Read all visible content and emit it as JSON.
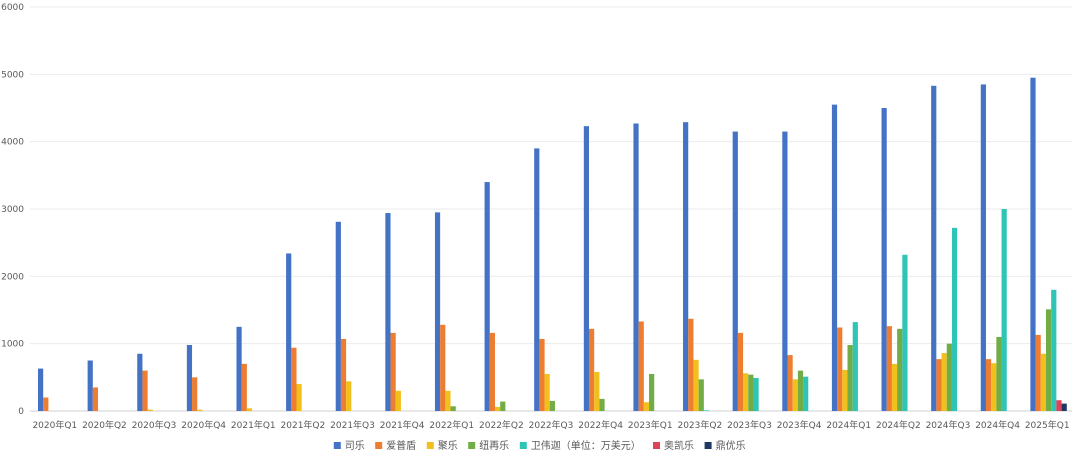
{
  "chart_data": {
    "type": "bar",
    "title": "",
    "xlabel": "",
    "ylabel": "",
    "ylim": [
      0,
      6000
    ],
    "yticks": [
      0,
      1000,
      2000,
      3000,
      4000,
      5000,
      6000
    ],
    "grid": true,
    "legend_position": "bottom",
    "categories": [
      "2020年Q1",
      "2020年Q2",
      "2020年Q3",
      "2020年Q4",
      "2021年Q1",
      "2021年Q2",
      "2021年Q3",
      "2021年Q4",
      "2022年Q1",
      "2022年Q2",
      "2022年Q3",
      "2022年Q4",
      "2023年Q1",
      "2023年Q2",
      "2023年Q3",
      "2023年Q4",
      "2024年Q1",
      "2024年Q2",
      "2024年Q3",
      "2024年Q4",
      "2025年Q1"
    ],
    "series": [
      {
        "name": "司乐",
        "color": "#4472C4",
        "values": [
          630,
          750,
          850,
          980,
          1250,
          2340,
          2810,
          2940,
          2950,
          3400,
          3900,
          4230,
          4270,
          4290,
          4150,
          4150,
          4550,
          4500,
          4830,
          4850,
          4950
        ]
      },
      {
        "name": "爱普盾",
        "color": "#ED7D31",
        "values": [
          200,
          350,
          600,
          500,
          700,
          940,
          1070,
          1160,
          1280,
          1160,
          1070,
          1220,
          1330,
          1370,
          1160,
          830,
          1240,
          1260,
          770,
          770,
          1130
        ]
      },
      {
        "name": "聚乐",
        "color": "#F2C01C",
        "values": [
          0,
          0,
          20,
          20,
          40,
          400,
          440,
          300,
          300,
          60,
          550,
          580,
          130,
          760,
          560,
          470,
          610,
          700,
          860,
          710,
          850
        ]
      },
      {
        "name": "纽再乐",
        "color": "#70AD47",
        "values": [
          0,
          0,
          0,
          0,
          0,
          0,
          0,
          0,
          70,
          140,
          150,
          180,
          550,
          470,
          540,
          600,
          980,
          1220,
          1000,
          1100,
          1510
        ]
      },
      {
        "name": "卫伟迦（单位：万美元）",
        "color": "#2EC4B6",
        "values": [
          0,
          0,
          0,
          0,
          0,
          0,
          0,
          0,
          0,
          0,
          0,
          0,
          0,
          10,
          490,
          510,
          1320,
          2320,
          2720,
          3000,
          1800
        ]
      },
      {
        "name": "奥凯乐",
        "color": "#E0425B",
        "values": [
          0,
          0,
          0,
          0,
          0,
          0,
          0,
          0,
          0,
          0,
          0,
          0,
          0,
          0,
          0,
          0,
          0,
          0,
          0,
          0,
          160
        ]
      },
      {
        "name": "鼎优乐",
        "color": "#203864",
        "values": [
          0,
          0,
          0,
          0,
          0,
          0,
          0,
          0,
          0,
          0,
          0,
          0,
          0,
          0,
          0,
          0,
          0,
          0,
          0,
          0,
          110
        ]
      }
    ]
  }
}
